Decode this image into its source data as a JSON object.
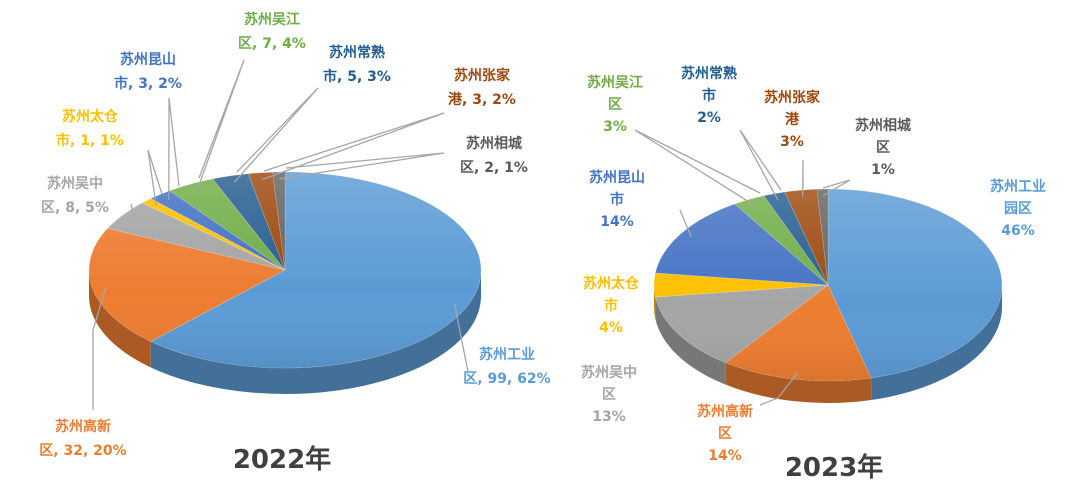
{
  "chart_data": [
    {
      "type": "pie",
      "title": "2022年",
      "slices": [
        {
          "line1": "苏州工业",
          "line2": "区, 99, 62%",
          "value": 99,
          "percent": 62,
          "color": "#5B9BD5"
        },
        {
          "line1": "苏州高新",
          "line2": "区, 32, 20%",
          "value": 32,
          "percent": 20,
          "color": "#ED7D31"
        },
        {
          "line1": "苏州吴中",
          "line2": "区, 8, 5%",
          "value": 8,
          "percent": 5,
          "color": "#A5A5A5"
        },
        {
          "line1": "苏州太仓",
          "line2": "市, 1, 1%",
          "value": 1,
          "percent": 1,
          "color": "#FFC000"
        },
        {
          "line1": "苏州昆山",
          "line2": "市, 3, 2%",
          "value": 3,
          "percent": 2,
          "color": "#4472C4"
        },
        {
          "line1": "苏州吴江",
          "line2": "区, 7, 4%",
          "value": 7,
          "percent": 4,
          "color": "#70AD47"
        },
        {
          "line1": "苏州常熟",
          "line2": "市, 5, 3%",
          "value": 5,
          "percent": 3,
          "color": "#255E91"
        },
        {
          "line1": "苏州张家",
          "line2": "港, 3, 2%",
          "value": 3,
          "percent": 2,
          "color": "#9E480E"
        },
        {
          "line1": "苏州相城",
          "line2": "区, 2, 1%",
          "value": 2,
          "percent": 1,
          "color": "#636363"
        }
      ]
    },
    {
      "type": "pie",
      "title": "2023年",
      "slices": [
        {
          "line1": "苏州工业",
          "line2": "园区",
          "line3": "46%",
          "percent": 46,
          "color": "#5B9BD5"
        },
        {
          "line1": "苏州高新",
          "line2": "区",
          "line3": "14%",
          "percent": 14,
          "color": "#ED7D31"
        },
        {
          "line1": "苏州吴中",
          "line2": "区",
          "line3": "13%",
          "percent": 13,
          "color": "#A5A5A5"
        },
        {
          "line1": "苏州太仓",
          "line2": "市",
          "line3": "4%",
          "percent": 4,
          "color": "#FFC000"
        },
        {
          "line1": "苏州昆山",
          "line2": "市",
          "line3": "14%",
          "percent": 14,
          "color": "#4472C4"
        },
        {
          "line1": "苏州吴江",
          "line2": "区",
          "line3": "3%",
          "percent": 3,
          "color": "#70AD47"
        },
        {
          "line1": "苏州常熟",
          "line2": "市",
          "line3": "2%",
          "percent": 2,
          "color": "#255E91"
        },
        {
          "line1": "苏州张家",
          "line2": "港",
          "line3": "3%",
          "percent": 3,
          "color": "#9E480E"
        },
        {
          "line1": "苏州相城",
          "line2": "区",
          "line3": "1%",
          "percent": 1,
          "color": "#636363"
        }
      ]
    }
  ]
}
